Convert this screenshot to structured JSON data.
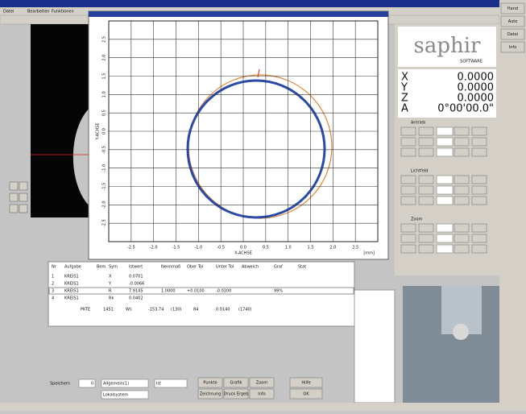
{
  "menu": [
    "Datei",
    "Bearbeiten",
    "Funktionen"
  ],
  "plot": {
    "x_label": "X-ACHSE",
    "y_label": "Y-ACHSE",
    "unit": "[mm]",
    "x_ticks": [
      "-2.5",
      "-2.0",
      "-1.5",
      "-1.0",
      "-0.5",
      "0.0",
      "0.5",
      "1.0",
      "1.5",
      "2.0",
      "2.5"
    ],
    "y_ticks": [
      "2.5",
      "2.0",
      "1.5",
      "1.0",
      "0.5",
      "0.0",
      "-0.5",
      "-1.0",
      "-1.5",
      "-2.0",
      "-2.5"
    ]
  },
  "logo": {
    "name": "saphir",
    "sub": "SOFTWARE"
  },
  "readout": [
    {
      "axis": "X",
      "value": "0.0000"
    },
    {
      "axis": "Y",
      "value": "0.0000"
    },
    {
      "axis": "Z",
      "value": "0.0000"
    },
    {
      "axis": "A",
      "value": "0°00'00.0\""
    }
  ],
  "controls": {
    "groups": [
      "Antrieb",
      "Lichtfeld",
      "Zoom"
    ]
  },
  "side_buttons": [
    "Hand",
    "Auto",
    "Datei",
    "Info"
  ],
  "table": {
    "headers": [
      "Nr",
      "Aufgabe",
      "Bem",
      "Sym",
      "Istwert",
      "Nennmaß",
      "Ober Tol",
      "Unter Tol",
      "Abweich",
      "Graf",
      "Stat"
    ],
    "rows": [
      [
        "1",
        "KREIS1",
        "",
        "X",
        "0.0701",
        "",
        "",
        "",
        "",
        "",
        ""
      ],
      [
        "2",
        "KREIS1",
        "",
        "Y",
        "-0.0066",
        "",
        "",
        "",
        "",
        "",
        ""
      ],
      [
        "3",
        "KREIS1",
        "",
        "R",
        "7.9145",
        "1.0000",
        "+0.0100",
        "-0.0100",
        "",
        "99%",
        ""
      ],
      [
        "4",
        "KREIS1",
        "",
        "Rk",
        "0.0402",
        "",
        "",
        "",
        "",
        "",
        ""
      ]
    ],
    "footer": [
      "PKTE",
      "1451",
      "Ws",
      "-153.74",
      "(130)",
      "84",
      "0.0140",
      "(1740)"
    ]
  },
  "bottom": {
    "label": "Speichern",
    "count": "0",
    "selects": [
      "Allgemein(1)",
      "Ist",
      "Lokalsystem"
    ],
    "buttons": [
      "Punkte",
      "Grafik",
      "Zoom",
      "Hilfe",
      "Zeichnung",
      "Druck Ergeb",
      "Info",
      "OK"
    ]
  }
}
